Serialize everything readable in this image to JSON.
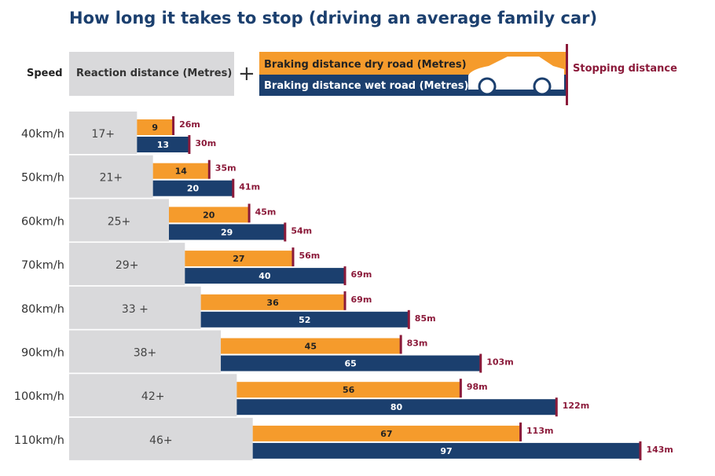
{
  "title": "How long it takes to stop (driving an average family car)",
  "legend": {
    "speed": "Speed",
    "reaction": "Reaction distance (Metres)",
    "plus": "+",
    "dry": "Braking distance dry road (Metres)",
    "wet": "Braking distance wet road (Metres)",
    "stopping": "Stopping distance"
  },
  "colors": {
    "reaction": "#d9d9db",
    "dry": "#f59b2c",
    "wet": "#1b3f6e",
    "marker": "#8b1a3a",
    "title": "#1b3f6e"
  },
  "chart_data": {
    "type": "bar",
    "orientation": "horizontal-stacked",
    "title": "How long it takes to stop (driving an average family car)",
    "categories": [
      "40km/h",
      "50km/h",
      "60km/h",
      "70km/h",
      "80km/h",
      "90km/h",
      "100km/h",
      "110km/h"
    ],
    "reaction_labels": [
      "17+",
      "21+",
      "25+",
      "29+",
      "33 +",
      "38+",
      "42+",
      "46+"
    ],
    "series": [
      {
        "name": "Reaction distance (Metres)",
        "values": [
          17,
          21,
          25,
          29,
          33,
          38,
          42,
          46
        ]
      },
      {
        "name": "Braking distance dry road (Metres)",
        "values": [
          9,
          14,
          20,
          27,
          36,
          45,
          56,
          67
        ]
      },
      {
        "name": "Braking distance wet road (Metres)",
        "values": [
          13,
          20,
          29,
          40,
          52,
          65,
          80,
          97
        ]
      }
    ],
    "stopping_dry_labels": [
      "26m",
      "35m",
      "45m",
      "56m",
      "69m",
      "83m",
      "98m",
      "113m"
    ],
    "stopping_wet_labels": [
      "30m",
      "41m",
      "54m",
      "69m",
      "85m",
      "103m",
      "122m",
      "143m"
    ],
    "stopping_dry": [
      26,
      35,
      45,
      56,
      69,
      83,
      98,
      113
    ],
    "stopping_wet": [
      30,
      41,
      54,
      69,
      85,
      103,
      122,
      143
    ],
    "legend_position": "top"
  }
}
